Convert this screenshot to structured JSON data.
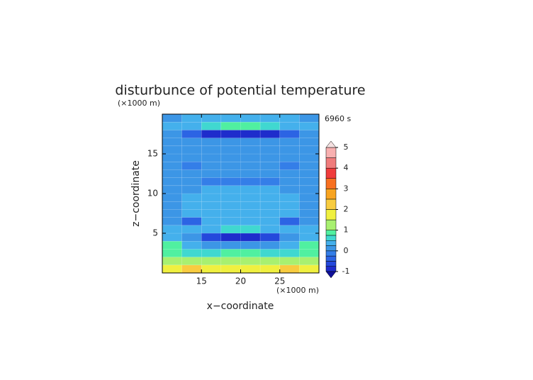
{
  "chart_data": {
    "type": "heatmap",
    "title": "disturbunce of potential temperature",
    "y_unit_label": "(×1000 m)",
    "x_unit_label": "(×1000 m)",
    "time_label": "6960 s",
    "xlabel": "x−coordinate",
    "ylabel": "z−coordinate",
    "xlim": [
      10,
      30
    ],
    "ylim": [
      0,
      20
    ],
    "xticks": [
      15,
      20,
      25
    ],
    "yticks": [
      5,
      10,
      15
    ],
    "xbins": [
      10,
      12.5,
      15,
      17.5,
      20,
      22.5,
      25,
      27.5,
      30
    ],
    "ybins": [
      0,
      1,
      2,
      3,
      4,
      5,
      6,
      7,
      8,
      9,
      10,
      11,
      12,
      13,
      14,
      15,
      16,
      17,
      18,
      19,
      20
    ],
    "values": [
      [
        1.5,
        2,
        1.5,
        1.5,
        1.5,
        1.5,
        2,
        1.5
      ],
      [
        1.2,
        1.3,
        1.2,
        1.2,
        1.2,
        1.2,
        1.3,
        1.2
      ],
      [
        0.8,
        0.7,
        0.7,
        0.8,
        0.8,
        0.7,
        0.7,
        0.8
      ],
      [
        0.8,
        0.3,
        0.2,
        0,
        0,
        0.2,
        0.3,
        0.8
      ],
      [
        0.3,
        0.2,
        -0.6,
        -0.8,
        -0.8,
        -0.6,
        0.2,
        0.3
      ],
      [
        0.3,
        0.3,
        0.4,
        0.6,
        0.6,
        0.4,
        0.3,
        0.3
      ],
      [
        0.2,
        -0.4,
        0.3,
        0.3,
        0.3,
        0.3,
        -0.4,
        0.2
      ],
      [
        0.2,
        0.3,
        0.3,
        0.3,
        0.3,
        0.3,
        0.3,
        0.2
      ],
      [
        0.1,
        0.3,
        0.3,
        0.3,
        0.3,
        0.3,
        0.3,
        0.1
      ],
      [
        0.1,
        0.3,
        0.3,
        0.3,
        0.3,
        0.3,
        0.3,
        0.1
      ],
      [
        0.1,
        0.1,
        0.3,
        0.3,
        0.3,
        0.3,
        0.1,
        0.1
      ],
      [
        0.1,
        0.1,
        -0.1,
        -0.1,
        -0.1,
        -0.1,
        0.1,
        0.1
      ],
      [
        0.2,
        0.1,
        0.1,
        0.1,
        0.1,
        0.1,
        0.1,
        0.2
      ],
      [
        0.1,
        -0.1,
        0.1,
        0.2,
        0.2,
        0.1,
        -0.1,
        0.1
      ],
      [
        0.2,
        0.2,
        0.2,
        0.2,
        0.2,
        0.2,
        0.2,
        0.2
      ],
      [
        0.2,
        0.2,
        0.2,
        0.2,
        0.2,
        0.2,
        0.2,
        0.2
      ],
      [
        0.1,
        0.1,
        0.2,
        0.2,
        0.2,
        0.2,
        0.1,
        0.1
      ],
      [
        0.1,
        -0.5,
        -0.8,
        -0.8,
        -0.8,
        -0.8,
        -0.5,
        0.1
      ],
      [
        0.3,
        0.3,
        0.6,
        0.8,
        0.8,
        0.6,
        0.3,
        0.3
      ],
      [
        0.2,
        0.3,
        0.3,
        0.3,
        0.3,
        0.3,
        0.3,
        0.2
      ]
    ],
    "colorbar": {
      "levels": [
        -1,
        -0.75,
        -0.5,
        -0.25,
        0,
        0.25,
        0.5,
        0.75,
        1,
        1.5,
        2,
        2.5,
        3,
        3.5,
        4,
        4.5,
        5
      ],
      "colors": [
        "#10109a",
        "#1e2ccc",
        "#2448dc",
        "#2c64e4",
        "#347ee8",
        "#3c96e6",
        "#44b0ec",
        "#40d8d0",
        "#50f0a0",
        "#a8f070",
        "#f0f040",
        "#f8cc40",
        "#f8a420",
        "#f87020",
        "#f03c3c",
        "#f07c7c",
        "#f8b0b0",
        "#f4e0e0"
      ],
      "ticks": [
        -1,
        0,
        1,
        2,
        3,
        4,
        5
      ]
    }
  }
}
